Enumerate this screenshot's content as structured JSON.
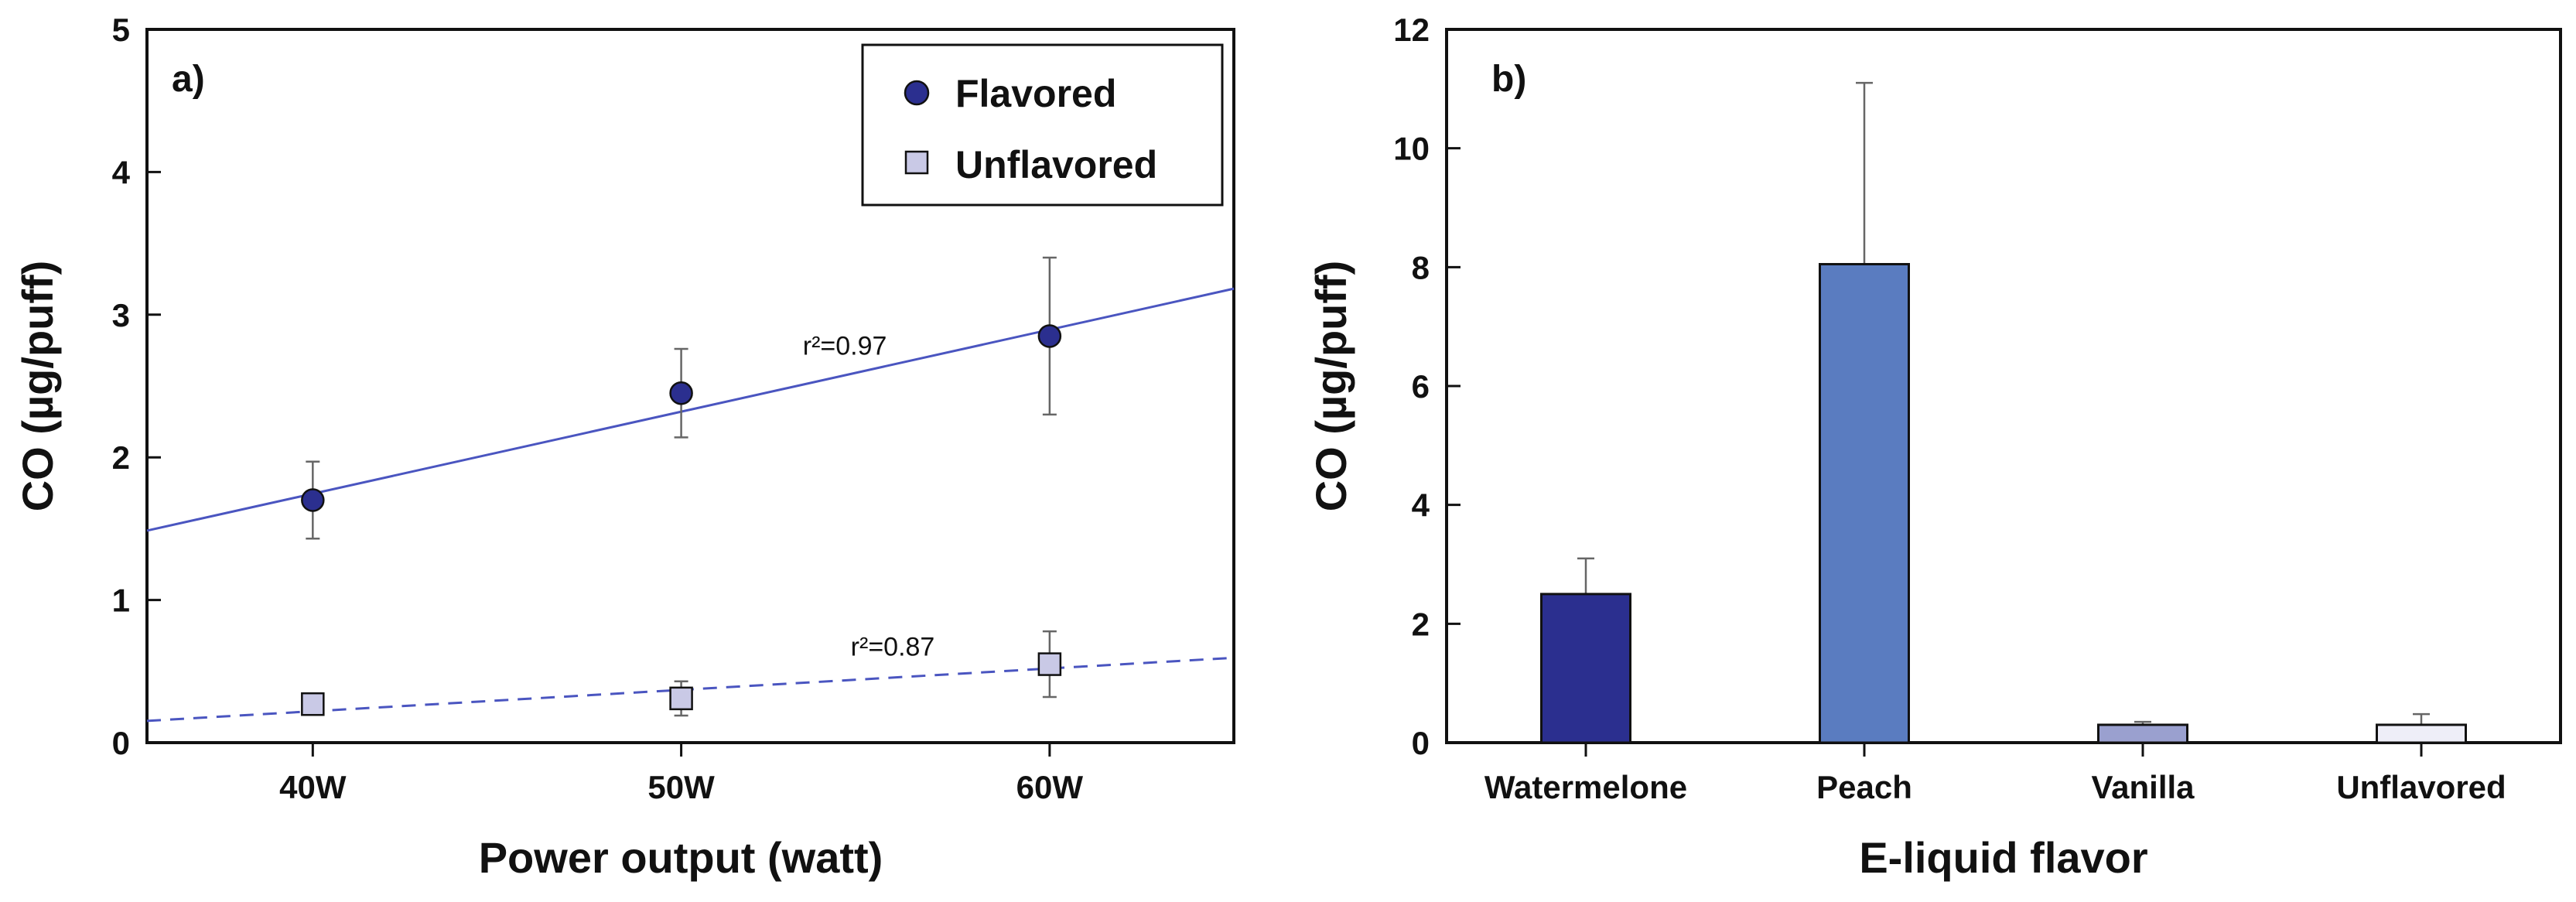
{
  "colors": {
    "flavored_marker": "#2b2f8f",
    "unflavored_marker": "#c9c9e6",
    "fit_line": "#4a55c0",
    "bar_watermelone": "#2b2f8f",
    "bar_peach": "#5a7cc0",
    "bar_vanilla": "#9aa0cf",
    "bar_unflavored": "#eeeef8"
  },
  "chart_data": [
    {
      "type": "scatter",
      "panel_label": "a)",
      "title": "",
      "xlabel": "Power output (watt)",
      "ylabel": "CO (µg/puff)",
      "categories": [
        "40W",
        "50W",
        "60W"
      ],
      "x": [
        40,
        50,
        60
      ],
      "xlim": [
        35.5,
        65
      ],
      "ylim": [
        0,
        5
      ],
      "yticks": [
        "0",
        "1",
        "2",
        "3",
        "4",
        "5"
      ],
      "legend_position": "top-right",
      "series": [
        {
          "name": "Flavored",
          "marker": "circle",
          "values": [
            1.7,
            2.45,
            2.85
          ],
          "errors": [
            0.27,
            0.31,
            0.55
          ],
          "fit": {
            "slope": 0.0575,
            "intercept": -0.555,
            "style": "solid",
            "label": "r²=0.97",
            "label_at": [
              53.3,
              2.72
            ]
          }
        },
        {
          "name": "Unflavored",
          "marker": "square",
          "values": [
            0.27,
            0.31,
            0.55
          ],
          "errors": [
            0.03,
            0.12,
            0.23
          ],
          "fit": {
            "slope": 0.015,
            "intercept": -0.38,
            "style": "dashed",
            "label": "r²=0.87",
            "label_at": [
              54.6,
              0.61
            ]
          }
        }
      ]
    },
    {
      "type": "bar",
      "panel_label": "b)",
      "title": "",
      "xlabel": "E-liquid flavor",
      "ylabel": "CO (µg/puff)",
      "categories": [
        "Watermelone",
        "Peach",
        "Vanilla",
        "Unflavored"
      ],
      "values": [
        2.5,
        8.05,
        0.3,
        0.3
      ],
      "errors": [
        0.6,
        3.05,
        0.05,
        0.18
      ],
      "ylim": [
        0,
        12
      ],
      "yticks": [
        "0",
        "2",
        "4",
        "6",
        "8",
        "10",
        "12"
      ]
    }
  ]
}
